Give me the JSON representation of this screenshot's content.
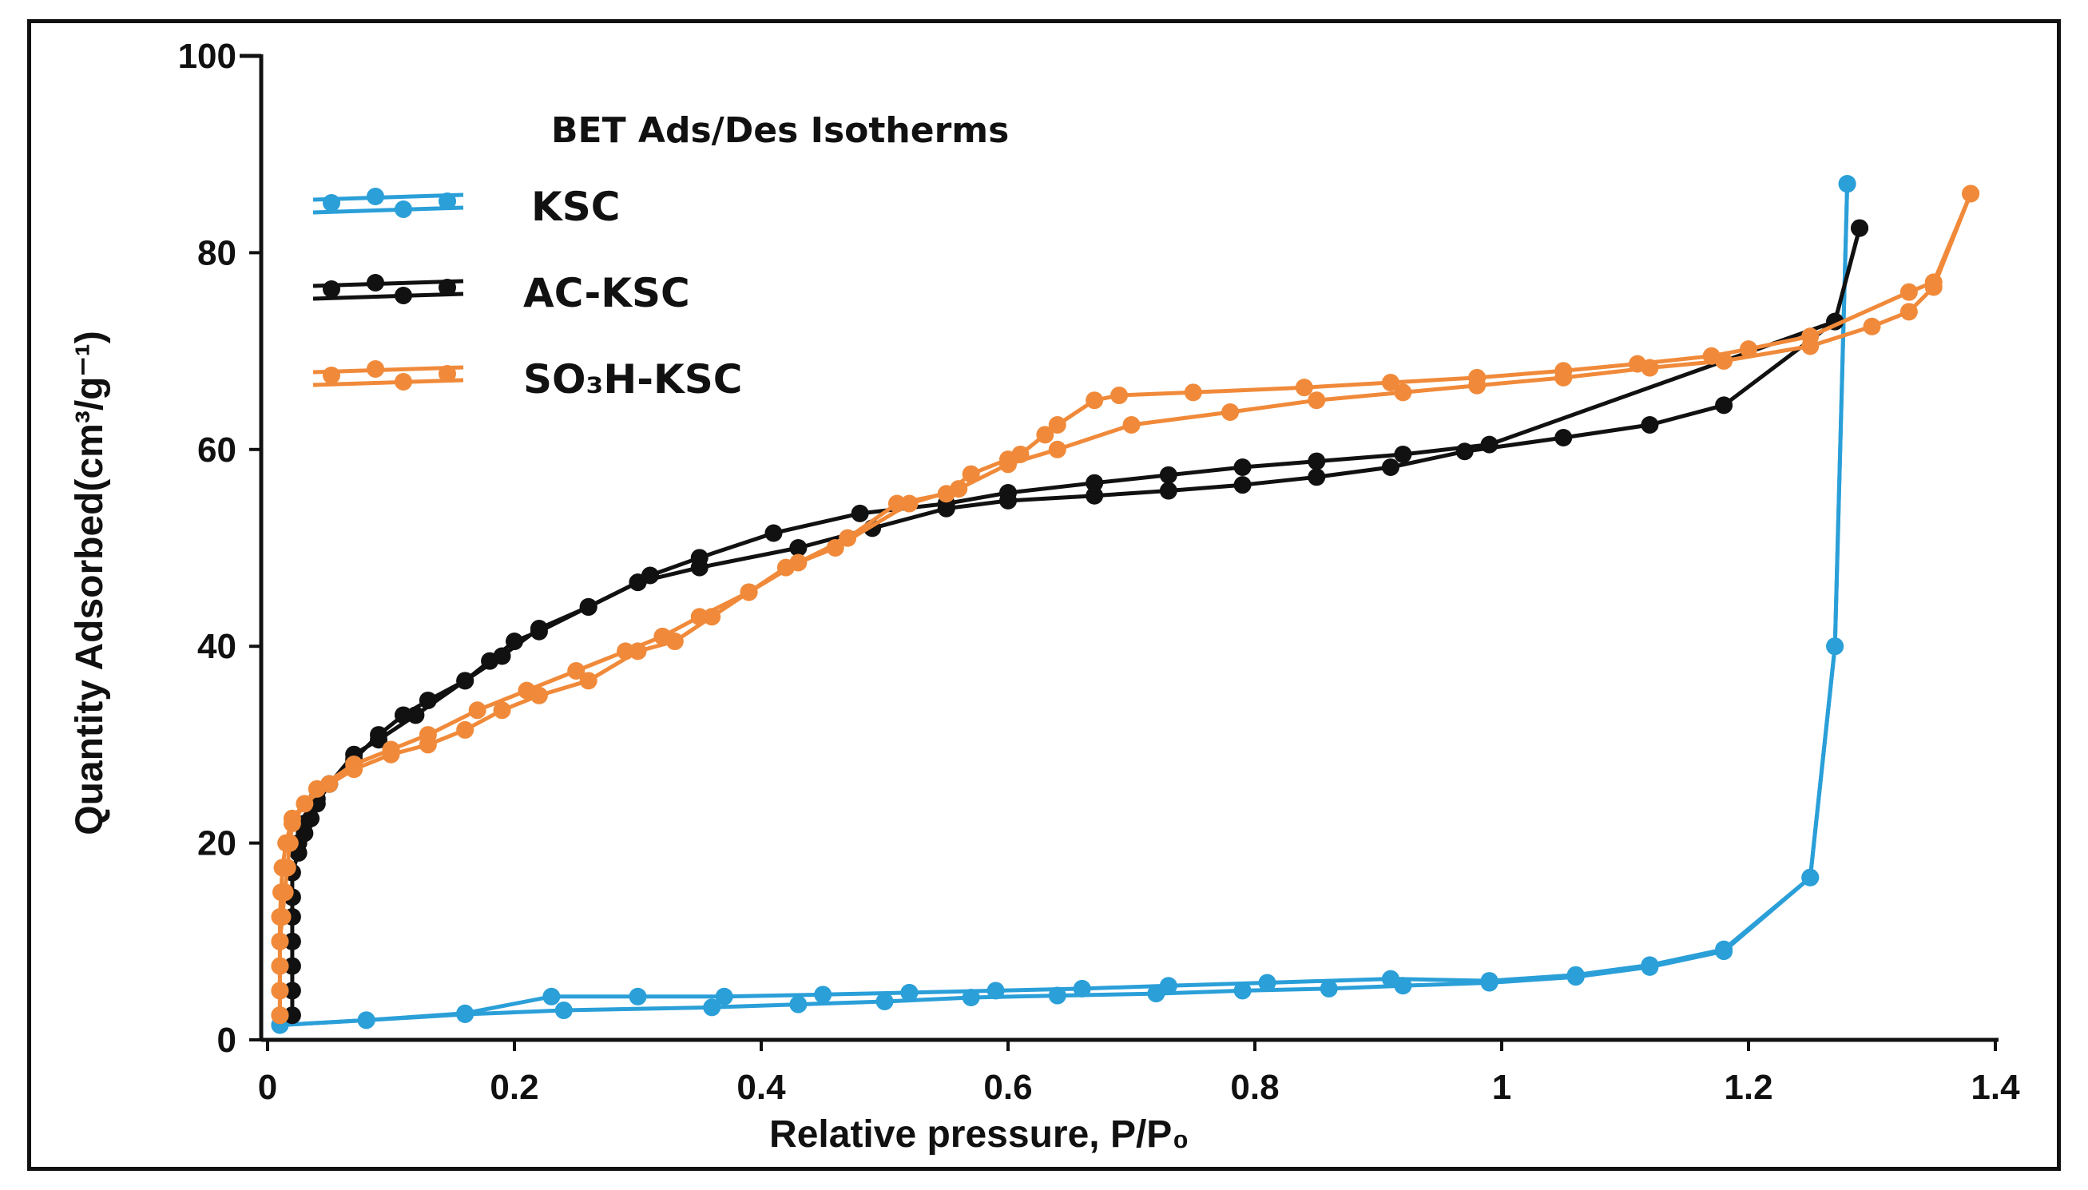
{
  "chart_data": {
    "type": "line",
    "title": "",
    "xlabel": "Relative pressure, P/P₀",
    "ylabel": "Quantity Adsorbed(cm³/g⁻¹)",
    "xlim": [
      0,
      1.4
    ],
    "ylim": [
      0,
      100
    ],
    "x_ticks": [
      "0",
      "0.2",
      "0.4",
      "0.6",
      "0.8",
      "1",
      "1.2",
      "1.4"
    ],
    "y_ticks": [
      "0",
      "20",
      "40",
      "60",
      "80",
      "100"
    ],
    "grid": false,
    "legend": {
      "title": "BET Ads/Des Isotherms",
      "placement": "top-left"
    },
    "series": [
      {
        "name": "KSC",
        "color": "#2a9fd8",
        "adsorption": [
          [
            0.01,
            1.5
          ],
          [
            0.08,
            2.0
          ],
          [
            0.16,
            2.6
          ],
          [
            0.24,
            3.0
          ],
          [
            0.36,
            3.3
          ],
          [
            0.43,
            3.6
          ],
          [
            0.5,
            3.9
          ],
          [
            0.57,
            4.3
          ],
          [
            0.64,
            4.5
          ],
          [
            0.72,
            4.7
          ],
          [
            0.79,
            5.0
          ],
          [
            0.86,
            5.2
          ],
          [
            0.92,
            5.5
          ],
          [
            0.99,
            5.8
          ],
          [
            1.06,
            6.4
          ],
          [
            1.12,
            7.4
          ],
          [
            1.18,
            9.0
          ],
          [
            1.25,
            16.5
          ],
          [
            1.27,
            40.0
          ],
          [
            1.28,
            87.0
          ]
        ],
        "desorption": [
          [
            1.28,
            87.0
          ],
          [
            1.27,
            40.0
          ],
          [
            1.25,
            16.5
          ],
          [
            1.18,
            9.2
          ],
          [
            1.12,
            7.6
          ],
          [
            1.06,
            6.6
          ],
          [
            0.99,
            6.0
          ],
          [
            0.91,
            6.2
          ],
          [
            0.81,
            5.8
          ],
          [
            0.73,
            5.5
          ],
          [
            0.66,
            5.2
          ],
          [
            0.59,
            5.0
          ],
          [
            0.52,
            4.8
          ],
          [
            0.45,
            4.6
          ],
          [
            0.37,
            4.4
          ],
          [
            0.3,
            4.4
          ],
          [
            0.23,
            4.4
          ],
          [
            0.16,
            2.7
          ],
          [
            0.08,
            2.0
          ],
          [
            0.01,
            1.5
          ]
        ]
      },
      {
        "name": "AC-KSC",
        "color": "#111111",
        "adsorption": [
          [
            0.02,
            2.5
          ],
          [
            0.02,
            5.0
          ],
          [
            0.02,
            7.5
          ],
          [
            0.02,
            10.0
          ],
          [
            0.02,
            12.5
          ],
          [
            0.02,
            14.5
          ],
          [
            0.02,
            17.0
          ],
          [
            0.025,
            19.0
          ],
          [
            0.03,
            21.0
          ],
          [
            0.035,
            22.5
          ],
          [
            0.04,
            24.0
          ],
          [
            0.05,
            26.0
          ],
          [
            0.07,
            28.5
          ],
          [
            0.09,
            31.0
          ],
          [
            0.11,
            33.0
          ],
          [
            0.13,
            34.5
          ],
          [
            0.16,
            36.5
          ],
          [
            0.18,
            38.5
          ],
          [
            0.2,
            40.5
          ],
          [
            0.22,
            41.5
          ],
          [
            0.26,
            44.0
          ],
          [
            0.3,
            46.5
          ],
          [
            0.35,
            48.0
          ],
          [
            0.43,
            50.0
          ],
          [
            0.49,
            52.0
          ],
          [
            0.55,
            54.0
          ],
          [
            0.6,
            54.8
          ],
          [
            0.67,
            55.3
          ],
          [
            0.73,
            55.8
          ],
          [
            0.79,
            56.4
          ],
          [
            0.85,
            57.2
          ],
          [
            0.91,
            58.2
          ],
          [
            0.97,
            59.8
          ],
          [
            1.05,
            61.2
          ],
          [
            1.12,
            62.5
          ],
          [
            1.18,
            64.5
          ],
          [
            1.27,
            73.0
          ],
          [
            1.29,
            82.5
          ]
        ],
        "desorption": [
          [
            1.29,
            82.5
          ],
          [
            1.27,
            73.0
          ],
          [
            0.99,
            60.5
          ],
          [
            0.92,
            59.5
          ],
          [
            0.85,
            58.8
          ],
          [
            0.79,
            58.2
          ],
          [
            0.73,
            57.4
          ],
          [
            0.67,
            56.6
          ],
          [
            0.6,
            55.6
          ],
          [
            0.55,
            54.5
          ],
          [
            0.48,
            53.5
          ],
          [
            0.41,
            51.5
          ],
          [
            0.35,
            49.0
          ],
          [
            0.31,
            47.2
          ],
          [
            0.3,
            46.5
          ],
          [
            0.26,
            44.0
          ],
          [
            0.22,
            41.8
          ],
          [
            0.19,
            39.0
          ],
          [
            0.16,
            36.5
          ],
          [
            0.12,
            33.0
          ],
          [
            0.09,
            30.5
          ],
          [
            0.07,
            29.0
          ],
          [
            0.05,
            26.0
          ],
          [
            0.04,
            24.5
          ],
          [
            0.03,
            22.0
          ],
          [
            0.025,
            20.0
          ]
        ]
      },
      {
        "name": "SO₃H-KSC",
        "color": "#f08a3a",
        "adsorption": [
          [
            0.01,
            2.5
          ],
          [
            0.01,
            5.0
          ],
          [
            0.01,
            7.5
          ],
          [
            0.01,
            10.0
          ],
          [
            0.012,
            12.5
          ],
          [
            0.014,
            15.0
          ],
          [
            0.016,
            17.5
          ],
          [
            0.018,
            20.0
          ],
          [
            0.02,
            22.0
          ],
          [
            0.03,
            24.0
          ],
          [
            0.05,
            26.0
          ],
          [
            0.07,
            27.5
          ],
          [
            0.1,
            29.0
          ],
          [
            0.13,
            30.0
          ],
          [
            0.16,
            31.5
          ],
          [
            0.19,
            33.5
          ],
          [
            0.22,
            35.0
          ],
          [
            0.26,
            36.5
          ],
          [
            0.3,
            39.5
          ],
          [
            0.33,
            40.5
          ],
          [
            0.36,
            43.0
          ],
          [
            0.39,
            45.5
          ],
          [
            0.42,
            48.0
          ],
          [
            0.46,
            50.0
          ],
          [
            0.52,
            54.5
          ],
          [
            0.56,
            56.0
          ],
          [
            0.6,
            58.5
          ],
          [
            0.64,
            60.0
          ],
          [
            0.7,
            62.5
          ],
          [
            0.78,
            63.8
          ],
          [
            0.85,
            65.0
          ],
          [
            0.92,
            65.8
          ],
          [
            0.98,
            66.5
          ],
          [
            1.05,
            67.3
          ],
          [
            1.12,
            68.3
          ],
          [
            1.18,
            69.0
          ],
          [
            1.25,
            70.5
          ],
          [
            1.3,
            72.5
          ],
          [
            1.33,
            74.0
          ],
          [
            1.35,
            76.5
          ],
          [
            1.38,
            86.0
          ]
        ],
        "desorption": [
          [
            1.38,
            86.0
          ],
          [
            1.35,
            77.0
          ],
          [
            1.33,
            76.0
          ],
          [
            1.25,
            71.5
          ],
          [
            1.2,
            70.2
          ],
          [
            1.17,
            69.5
          ],
          [
            1.11,
            68.7
          ],
          [
            1.05,
            68.0
          ],
          [
            0.98,
            67.3
          ],
          [
            0.91,
            66.8
          ],
          [
            0.84,
            66.3
          ],
          [
            0.75,
            65.8
          ],
          [
            0.69,
            65.5
          ],
          [
            0.67,
            65.0
          ],
          [
            0.64,
            62.5
          ],
          [
            0.63,
            61.5
          ],
          [
            0.61,
            59.5
          ],
          [
            0.6,
            59.0
          ],
          [
            0.57,
            57.5
          ],
          [
            0.55,
            55.5
          ],
          [
            0.51,
            54.5
          ],
          [
            0.47,
            51.0
          ],
          [
            0.43,
            48.5
          ],
          [
            0.39,
            45.5
          ],
          [
            0.35,
            43.0
          ],
          [
            0.32,
            41.0
          ],
          [
            0.29,
            39.5
          ],
          [
            0.25,
            37.5
          ],
          [
            0.21,
            35.5
          ],
          [
            0.17,
            33.5
          ],
          [
            0.13,
            31.0
          ],
          [
            0.1,
            29.5
          ],
          [
            0.07,
            28.0
          ],
          [
            0.04,
            25.5
          ],
          [
            0.02,
            22.5
          ],
          [
            0.015,
            20.0
          ],
          [
            0.012,
            17.5
          ],
          [
            0.011,
            15.0
          ],
          [
            0.01,
            12.5
          ],
          [
            0.01,
            10.0
          ],
          [
            0.01,
            7.5
          ],
          [
            0.01,
            5.0
          ],
          [
            0.01,
            2.5
          ]
        ]
      }
    ]
  }
}
